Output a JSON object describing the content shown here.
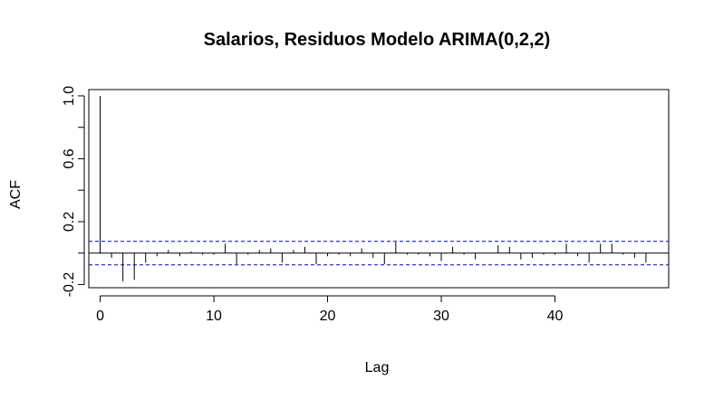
{
  "chart_data": {
    "type": "bar",
    "title": "Salarios, Residuos Modelo ARIMA(0,2,2)",
    "xlabel": "Lag",
    "ylabel": "ACF",
    "xlim": [
      -1,
      50
    ],
    "ylim": [
      -0.22,
      1.04
    ],
    "xticks": [
      0,
      10,
      20,
      30,
      40
    ],
    "yticks": [
      -0.2,
      0.2,
      0.6,
      1.0
    ],
    "yticks_minor": [
      0.0,
      0.4,
      0.8
    ],
    "ytick_labels": [
      "-0.2",
      "0.2",
      "0.6",
      "1.0"
    ],
    "confidence_bound": 0.075,
    "colors": {
      "bars": "#000000",
      "confidence": "#0000cc",
      "zero_line": "#000000"
    },
    "lags": [
      0,
      1,
      2,
      3,
      4,
      5,
      6,
      7,
      8,
      9,
      10,
      11,
      12,
      13,
      14,
      15,
      16,
      17,
      18,
      19,
      20,
      21,
      22,
      23,
      24,
      25,
      26,
      27,
      28,
      29,
      30,
      31,
      32,
      33,
      34,
      35,
      36,
      37,
      38,
      39,
      40,
      41,
      42,
      43,
      44,
      45,
      46,
      47,
      48
    ],
    "acf": [
      1.0,
      -0.03,
      -0.18,
      -0.17,
      -0.06,
      -0.02,
      0.02,
      -0.02,
      0.01,
      -0.01,
      -0.01,
      0.06,
      -0.07,
      -0.01,
      0.02,
      0.03,
      -0.06,
      0.02,
      0.04,
      -0.07,
      -0.02,
      -0.01,
      -0.02,
      0.03,
      -0.03,
      -0.07,
      0.07,
      -0.01,
      -0.01,
      -0.02,
      -0.05,
      0.04,
      -0.01,
      -0.04,
      0.0,
      0.05,
      0.04,
      -0.04,
      -0.03,
      -0.01,
      -0.01,
      0.06,
      -0.02,
      -0.06,
      0.06,
      0.06,
      -0.01,
      -0.03,
      -0.06
    ]
  }
}
